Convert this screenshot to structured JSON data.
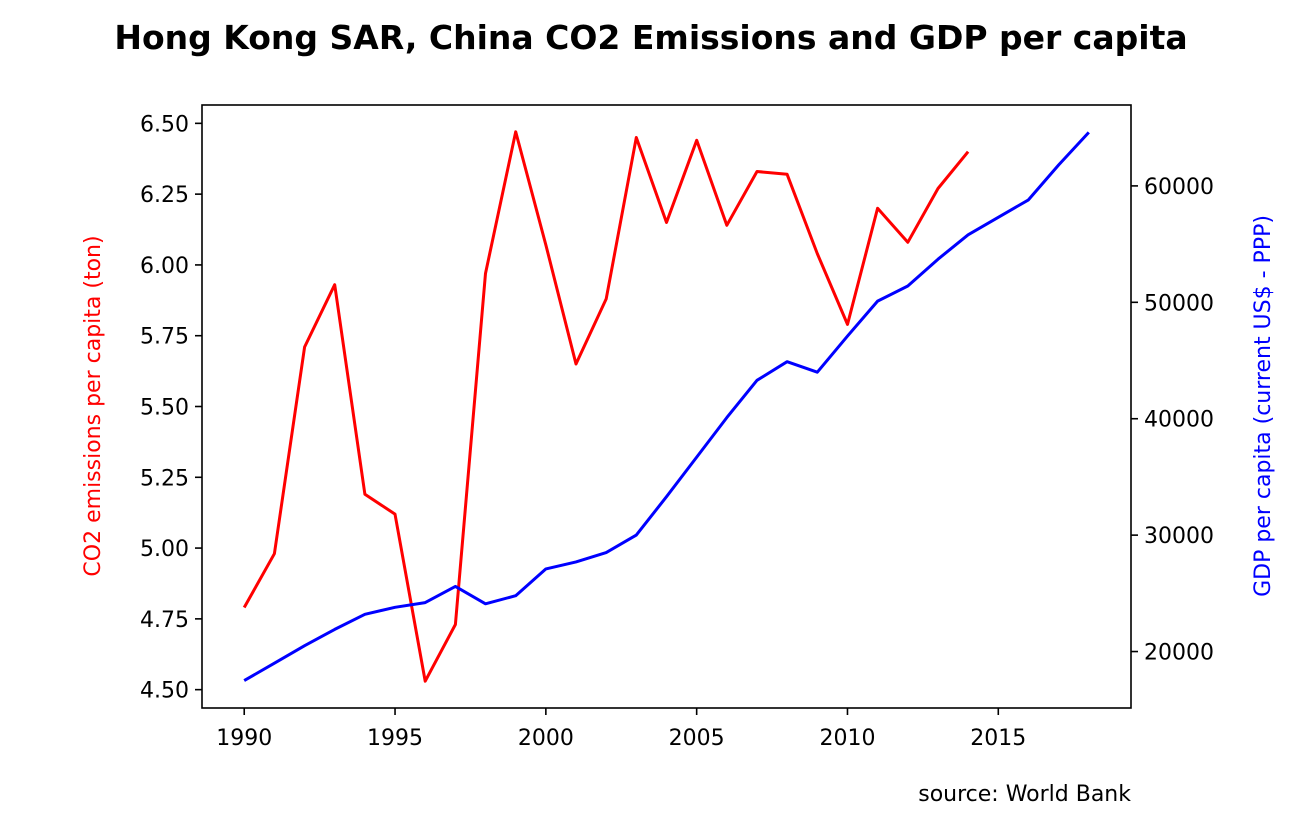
{
  "chart_data": {
    "type": "line",
    "title": "Hong Kong SAR, China CO2 Emissions and GDP per capita",
    "source": "source: World Bank",
    "xlim": [
      1988.6,
      2019.4
    ],
    "xticks": [
      1990,
      1995,
      2000,
      2005,
      2010,
      2015
    ],
    "grid": false,
    "legend": "none",
    "series": [
      {
        "name": "",
        "axis": "left",
        "color": "#ff0000",
        "x": [
          1990,
          1991,
          1992,
          1993,
          1994,
          1995,
          1996,
          1997,
          1998,
          1999,
          2000,
          2001,
          2002,
          2003,
          2004,
          2005,
          2006,
          2007,
          2008,
          2009,
          2010,
          2011,
          2012,
          2013,
          2014
        ],
        "values": [
          4.79,
          4.98,
          5.71,
          5.93,
          5.19,
          5.12,
          4.53,
          4.73,
          5.97,
          6.47,
          6.07,
          5.65,
          5.88,
          6.45,
          6.15,
          6.44,
          6.14,
          6.33,
          6.32,
          6.04,
          5.79,
          6.2,
          6.08,
          6.27,
          6.4
        ]
      },
      {
        "name": "",
        "axis": "right",
        "color": "#0000ff",
        "x": [
          1990,
          1991,
          1992,
          1993,
          1994,
          1995,
          1996,
          1997,
          1998,
          1999,
          2000,
          2001,
          2002,
          2003,
          2004,
          2005,
          2006,
          2007,
          2008,
          2009,
          2010,
          2011,
          2012,
          2013,
          2014,
          2015,
          2016,
          2017,
          2018
        ],
        "values": [
          17500,
          19000,
          20500,
          21900,
          23200,
          23800,
          24200,
          25600,
          24100,
          24800,
          27100,
          27700,
          28500,
          30000,
          33300,
          36700,
          40100,
          43300,
          44900,
          44000,
          47100,
          50100,
          51400,
          53700,
          55800,
          57300,
          58800,
          61800,
          64600
        ]
      }
    ],
    "y_left": {
      "label": "CO2 emissions per capita (ton)",
      "color": "#ff0000",
      "ylim": [
        4.4352,
        6.5648
      ],
      "ticks": [
        4.5,
        4.75,
        5.0,
        5.25,
        5.5,
        5.75,
        6.0,
        6.25,
        6.5
      ],
      "tick_labels": [
        "4.50",
        "4.75",
        "5.00",
        "5.25",
        "5.50",
        "5.75",
        "6.00",
        "6.25",
        "6.50"
      ]
    },
    "y_right": {
      "label": "GDP per capita (current US$ - PPP)",
      "color": "#0000ff",
      "ylim": [
        15150,
        66950
      ],
      "ticks": [
        20000,
        30000,
        40000,
        50000,
        60000
      ],
      "tick_labels": [
        "20000",
        "30000",
        "40000",
        "50000",
        "60000"
      ]
    }
  }
}
